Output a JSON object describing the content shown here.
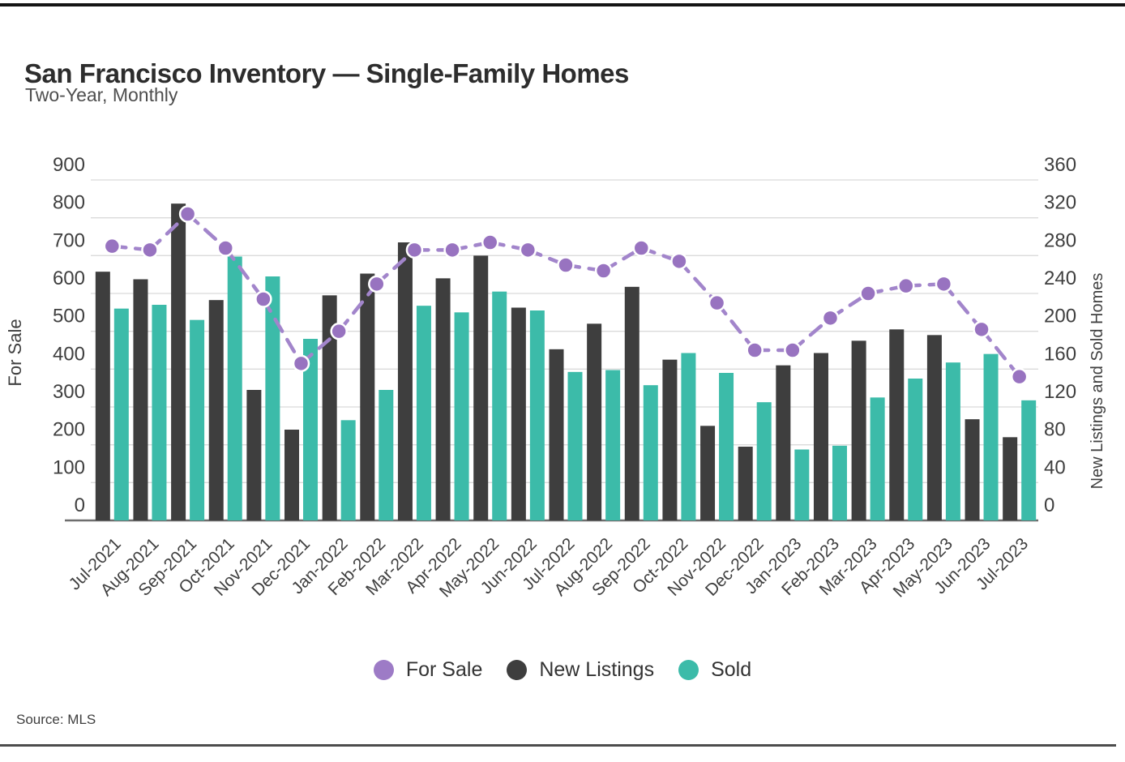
{
  "header": {
    "title": "San Francisco Inventory — Single-Family Homes",
    "subtitle": "Two-Year, Monthly"
  },
  "footer": {
    "source": "Source: MLS"
  },
  "legend": [
    {
      "label": "For Sale",
      "color": "#9d7bc6"
    },
    {
      "label": "New Listings",
      "color": "#3e3e3e"
    },
    {
      "label": "Sold",
      "color": "#3cbba9"
    }
  ],
  "colors": {
    "for_sale_line": "#a285cb",
    "for_sale_point": "#9873c0",
    "point_border": "#ffffff",
    "new_listings_bar": "#3e3e3e",
    "sold_bar": "#3cbba9",
    "gridline": "#dadada",
    "baseline": "#6e6e6e",
    "tick_text": "#3f3f3f",
    "axis_title_text": "#3f3f3f"
  },
  "chart_data": {
    "type": "bar",
    "subtype": "grouped bars with overlaid line (dual axis)",
    "title": "San Francisco Inventory — Single-Family Homes",
    "subtitle": "Two-Year, Monthly",
    "grid": true,
    "legend_position": "bottom",
    "categories": [
      "Jul-2021",
      "Aug-2021",
      "Sep-2021",
      "Oct-2021",
      "Nov-2021",
      "Dec-2021",
      "Jan-2022",
      "Feb-2022",
      "Mar-2022",
      "Apr-2022",
      "May-2022",
      "Jun-2022",
      "Jul-2022",
      "Aug-2022",
      "Sep-2022",
      "Oct-2022",
      "Nov-2022",
      "Dec-2022",
      "Jan-2023",
      "Feb-2023",
      "Mar-2023",
      "Apr-2023",
      "May-2023",
      "Jun-2023",
      "Jul-2023"
    ],
    "left_axis": {
      "label": "For Sale",
      "min": 0,
      "max": 900,
      "tick_interval": 100
    },
    "right_axis": {
      "label": "New Listings and Sold Homes",
      "min": 0,
      "max": 360,
      "tick_interval": 40
    },
    "series": [
      {
        "name": "For Sale",
        "type": "line",
        "axis": "left",
        "values": [
          725,
          715,
          810,
          720,
          585,
          415,
          500,
          625,
          715,
          715,
          735,
          715,
          675,
          660,
          720,
          685,
          575,
          450,
          450,
          535,
          600,
          620,
          625,
          505,
          380
        ]
      },
      {
        "name": "New Listings",
        "type": "bar",
        "axis": "right",
        "values": [
          263,
          255,
          335,
          233,
          138,
          96,
          238,
          261,
          294,
          256,
          280,
          225,
          181,
          208,
          247,
          170,
          100,
          78,
          164,
          177,
          190,
          202,
          196,
          107,
          88
        ]
      },
      {
        "name": "Sold",
        "type": "bar",
        "axis": "right",
        "values": [
          224,
          228,
          212,
          279,
          258,
          192,
          106,
          138,
          227,
          220,
          242,
          222,
          157,
          159,
          143,
          177,
          156,
          125,
          75,
          79,
          130,
          150,
          167,
          176,
          127
        ]
      }
    ]
  }
}
